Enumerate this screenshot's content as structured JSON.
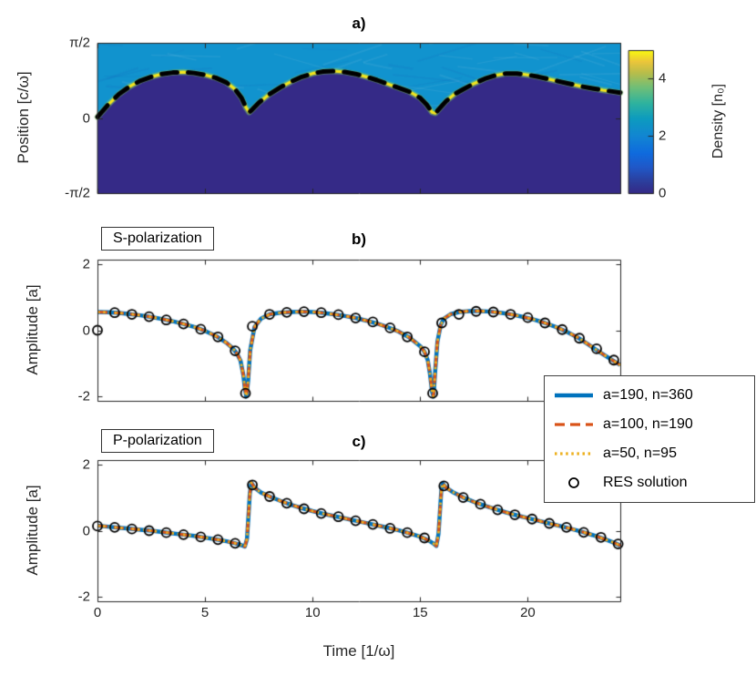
{
  "figure": {
    "background": "#ffffff",
    "axis_color": "#262626",
    "xlabel": "Time [1/ω]",
    "xticks": [
      0,
      5,
      10,
      15,
      20
    ]
  },
  "colors": {
    "vacuum_fill": "#352a87",
    "plasma_fill": "#1193ce",
    "surface_band": "#f3e51c",
    "surface_glow": "rgba(122,195,106,0.55)",
    "overlay_dashed": "#000000"
  },
  "legend": {
    "entries": [
      {
        "label": "a=190, n=360",
        "style": "solid",
        "color": "#0072BD"
      },
      {
        "label": "a=100, n=190",
        "style": "dashed",
        "color": "#D95319"
      },
      {
        "label": "a=50, n=95",
        "style": "dotted",
        "color": "#EDB120"
      },
      {
        "label": "RES solution",
        "style": "circle",
        "color": "#000000"
      }
    ]
  },
  "chart_data": [
    {
      "id": "a",
      "type": "heatmap",
      "title": "a)",
      "ylabel": "Position [c/ω]",
      "xlim": [
        0,
        24.3
      ],
      "ylim": [
        -1.5708,
        1.5708
      ],
      "yticks": [
        {
          "v": 1.5708,
          "label": "π/2"
        },
        {
          "v": 0,
          "label": "0"
        },
        {
          "v": -1.5708,
          "label": "-π/2"
        }
      ],
      "colorbar": {
        "label": "Density [n₀]",
        "ticks": [
          0,
          2,
          4
        ],
        "vmax": 5
      },
      "vacuum_density": 0,
      "plasma_density": 1,
      "surface_boundary": {
        "x": [
          0,
          0.5,
          1,
          1.5,
          2,
          2.5,
          3,
          3.5,
          4,
          4.5,
          5,
          5.5,
          6,
          6.4,
          6.7,
          6.9,
          7.05,
          7.2,
          7.5,
          8,
          8.5,
          9,
          9.5,
          10,
          10.5,
          11,
          11.5,
          12,
          12.5,
          13,
          13.5,
          14,
          14.5,
          15,
          15.3,
          15.55,
          15.7,
          15.9,
          16.2,
          16.6,
          17,
          17.5,
          18,
          18.5,
          19,
          19.5,
          20,
          20.5,
          21,
          21.5,
          22,
          22.5,
          23,
          23.5,
          24,
          24.3
        ],
        "y": [
          0.02,
          0.28,
          0.5,
          0.66,
          0.78,
          0.86,
          0.92,
          0.95,
          0.96,
          0.94,
          0.9,
          0.84,
          0.74,
          0.6,
          0.42,
          0.22,
          0.12,
          0.18,
          0.32,
          0.5,
          0.64,
          0.76,
          0.86,
          0.93,
          0.97,
          0.98,
          0.96,
          0.92,
          0.86,
          0.79,
          0.71,
          0.63,
          0.55,
          0.42,
          0.28,
          0.12,
          0.1,
          0.2,
          0.35,
          0.5,
          0.6,
          0.72,
          0.82,
          0.89,
          0.93,
          0.93,
          0.9,
          0.86,
          0.81,
          0.76,
          0.71,
          0.66,
          0.62,
          0.58,
          0.55,
          0.53
        ]
      }
    },
    {
      "id": "b",
      "type": "line",
      "title": "b)",
      "box_label": "S-polarization",
      "ylabel": "Amplitude [a]",
      "xlim": [
        0,
        24.3
      ],
      "ylim": [
        -2.13,
        2.13
      ],
      "yticks": [
        -2,
        0,
        2
      ],
      "series": [
        {
          "name": "a=190, n=360"
        },
        {
          "name": "a=100, n=190"
        },
        {
          "name": "a=50, n=95"
        }
      ],
      "x": [
        0,
        0.5,
        1,
        1.5,
        2,
        2.5,
        3,
        3.5,
        4,
        4.5,
        5,
        5.5,
        6,
        6.3,
        6.5,
        6.65,
        6.78,
        6.85,
        6.92,
        7.0,
        7.1,
        7.3,
        7.6,
        8,
        8.5,
        9,
        9.5,
        10,
        10.5,
        11,
        11.5,
        12,
        12.5,
        13,
        13.5,
        14,
        14.5,
        15,
        15.2,
        15.35,
        15.45,
        15.55,
        15.62,
        15.7,
        15.8,
        15.95,
        16.1,
        16.4,
        16.8,
        17.3,
        17.8,
        18.3,
        18.8,
        19.3,
        19.8,
        20.3,
        20.8,
        21.3,
        21.8,
        22.3,
        22.8,
        23.3,
        23.8,
        24.3
      ],
      "y": [
        0.55,
        0.54,
        0.52,
        0.49,
        0.45,
        0.4,
        0.34,
        0.27,
        0.19,
        0.1,
        -0.02,
        -0.17,
        -0.38,
        -0.55,
        -0.72,
        -0.92,
        -1.35,
        -1.75,
        -2.0,
        -1.55,
        -0.6,
        0.1,
        0.35,
        0.48,
        0.53,
        0.55,
        0.56,
        0.55,
        0.52,
        0.48,
        0.43,
        0.37,
        0.29,
        0.2,
        0.09,
        -0.04,
        -0.22,
        -0.48,
        -0.65,
        -0.9,
        -1.3,
        -1.85,
        -2.0,
        -1.2,
        -0.35,
        0.15,
        0.35,
        0.48,
        0.55,
        0.58,
        0.58,
        0.56,
        0.52,
        0.47,
        0.4,
        0.32,
        0.22,
        0.1,
        -0.04,
        -0.21,
        -0.42,
        -0.64,
        -0.85,
        -1.05
      ],
      "res_solution": {
        "t": [
          0,
          0.8,
          1.6,
          2.4,
          3.2,
          4.0,
          4.8,
          5.6,
          6.4,
          6.88,
          7.2,
          8.0,
          8.8,
          9.6,
          10.4,
          11.2,
          12.0,
          12.8,
          13.6,
          14.4,
          15.2,
          15.58,
          16.0,
          16.8,
          17.6,
          18.4,
          19.2,
          20.0,
          20.8,
          21.6,
          22.4,
          23.2,
          24.0
        ],
        "y": [
          0,
          0.53,
          0.48,
          0.41,
          0.31,
          0.19,
          0.03,
          -0.2,
          -0.62,
          -1.9,
          0.12,
          0.48,
          0.54,
          0.56,
          0.53,
          0.47,
          0.37,
          0.25,
          0.07,
          -0.2,
          -0.65,
          -1.9,
          0.22,
          0.48,
          0.57,
          0.55,
          0.48,
          0.38,
          0.22,
          0.02,
          -0.24,
          -0.56,
          -0.9
        ]
      }
    },
    {
      "id": "c",
      "type": "line",
      "title": "c)",
      "box_label": "P-polarization",
      "ylabel": "Amplitude [a]",
      "xlim": [
        0,
        24.3
      ],
      "ylim": [
        -2.13,
        2.13
      ],
      "yticks": [
        -2,
        0,
        2
      ],
      "series": [
        {
          "name": "a=190, n=360"
        },
        {
          "name": "a=100, n=190"
        },
        {
          "name": "a=50, n=95"
        }
      ],
      "x": [
        0,
        0.5,
        1,
        1.5,
        2,
        2.5,
        3,
        3.5,
        4,
        4.5,
        5,
        5.5,
        6,
        6.4,
        6.7,
        6.85,
        6.95,
        7.02,
        7.08,
        7.15,
        7.3,
        7.6,
        8,
        8.5,
        9,
        9.5,
        10,
        10.5,
        11,
        11.5,
        12,
        12.5,
        13,
        13.5,
        14,
        14.5,
        15,
        15.4,
        15.6,
        15.75,
        15.85,
        15.92,
        15.98,
        16.05,
        16.2,
        16.5,
        17,
        17.5,
        18,
        18.5,
        19,
        19.5,
        20,
        20.5,
        21,
        21.5,
        22,
        22.5,
        23,
        23.5,
        24,
        24.3
      ],
      "y": [
        0.15,
        0.12,
        0.09,
        0.06,
        0.03,
        0.0,
        -0.04,
        -0.08,
        -0.12,
        -0.16,
        -0.21,
        -0.26,
        -0.32,
        -0.38,
        -0.44,
        -0.48,
        -0.25,
        0.45,
        1.1,
        1.45,
        1.3,
        1.15,
        1.03,
        0.9,
        0.78,
        0.68,
        0.59,
        0.51,
        0.44,
        0.37,
        0.3,
        0.23,
        0.16,
        0.09,
        0.01,
        -0.08,
        -0.18,
        -0.3,
        -0.38,
        -0.46,
        -0.1,
        0.6,
        1.2,
        1.42,
        1.3,
        1.17,
        1.0,
        0.87,
        0.75,
        0.65,
        0.55,
        0.46,
        0.38,
        0.3,
        0.22,
        0.14,
        0.06,
        -0.03,
        -0.13,
        -0.24,
        -0.36,
        -0.45
      ],
      "res_solution": {
        "t": [
          0,
          0.8,
          1.6,
          2.4,
          3.2,
          4.0,
          4.8,
          5.6,
          6.4,
          7.2,
          8.0,
          8.8,
          9.6,
          10.4,
          11.2,
          12.0,
          12.8,
          13.6,
          14.4,
          15.2,
          16.1,
          17.0,
          17.8,
          18.6,
          19.4,
          20.2,
          21.0,
          21.8,
          22.6,
          23.4,
          24.2
        ],
        "y": [
          0.14,
          0.1,
          0.05,
          0.0,
          -0.06,
          -0.12,
          -0.19,
          -0.27,
          -0.38,
          1.38,
          1.03,
          0.83,
          0.66,
          0.52,
          0.42,
          0.3,
          0.19,
          0.07,
          -0.06,
          -0.22,
          1.35,
          1.0,
          0.8,
          0.63,
          0.48,
          0.35,
          0.22,
          0.1,
          -0.05,
          -0.2,
          -0.4
        ]
      }
    }
  ]
}
